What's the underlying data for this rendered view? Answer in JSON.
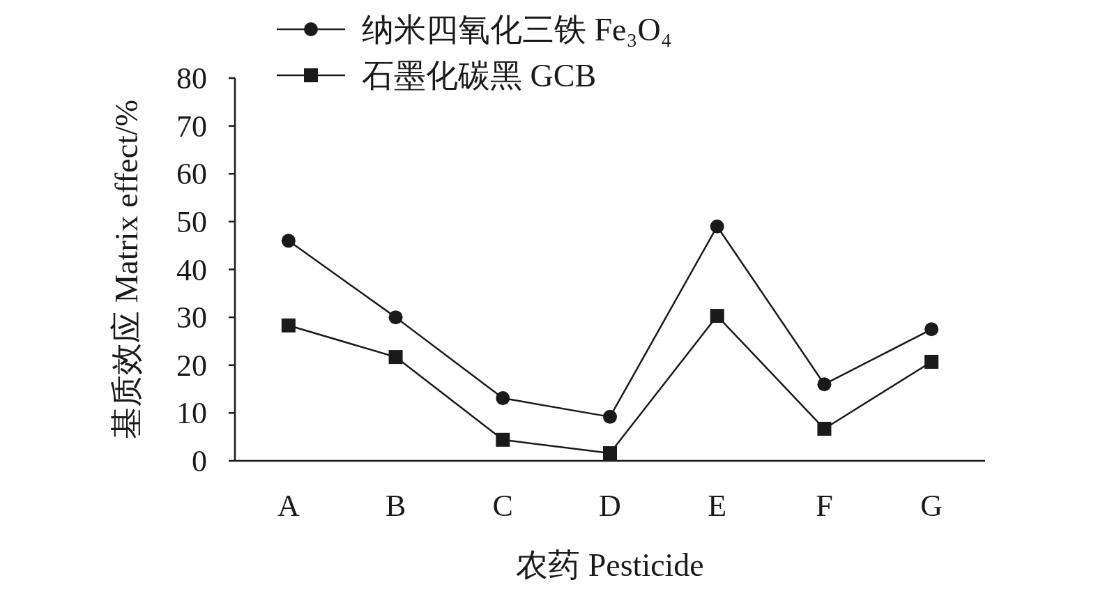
{
  "chart_data": {
    "type": "line",
    "xlabel": "农药 Pesticide",
    "ylabel": "基质效应 Matrix effect/%",
    "categories": [
      "A",
      "B",
      "C",
      "D",
      "E",
      "F",
      "G"
    ],
    "series": [
      {
        "name": "纳米四氧化三铁 Fe₃O₄",
        "color": "#1a1a1a",
        "marker": "circle",
        "values": [
          46,
          30,
          13.1,
          9.2,
          49,
          16,
          27.5
        ]
      },
      {
        "name": "石墨化碳黑 GCB",
        "color": "#1a1a1a",
        "marker": "square",
        "values": [
          28.3,
          21.7,
          4.4,
          1.6,
          30.3,
          6.7,
          20.7
        ]
      }
    ],
    "ylim": [
      0,
      80
    ],
    "yticks": [
      0,
      10,
      20,
      30,
      40,
      50,
      60,
      70,
      80
    ],
    "grid": false,
    "legend": "top",
    "line_style": "solid"
  }
}
